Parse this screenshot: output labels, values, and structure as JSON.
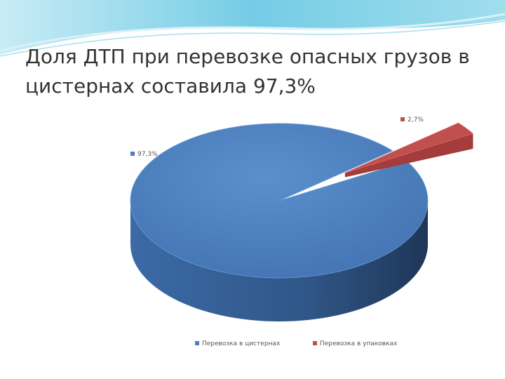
{
  "slide": {
    "title": "Доля ДТП при перевозке опасных грузов в цистернах составила 97,3%"
  },
  "colors": {
    "tank": "#4a7ebb",
    "tank_side": "#2c4f7d",
    "package": "#c0504d",
    "package_side": "#8c2f2d",
    "header_band": "#8fd3e8"
  },
  "chart_data": {
    "type": "pie",
    "categories": [
      "Перевозка в цистернах",
      "Перевозка в упаковках"
    ],
    "values": [
      97.3,
      2.7
    ],
    "data_labels": [
      "97,3%",
      "2,7%"
    ],
    "exploded": [
      false,
      true
    ],
    "style": "3d",
    "legend": {
      "position": "bottom",
      "entries": [
        "Перевозка в цистернах",
        "Перевозка в упаковках"
      ]
    }
  }
}
